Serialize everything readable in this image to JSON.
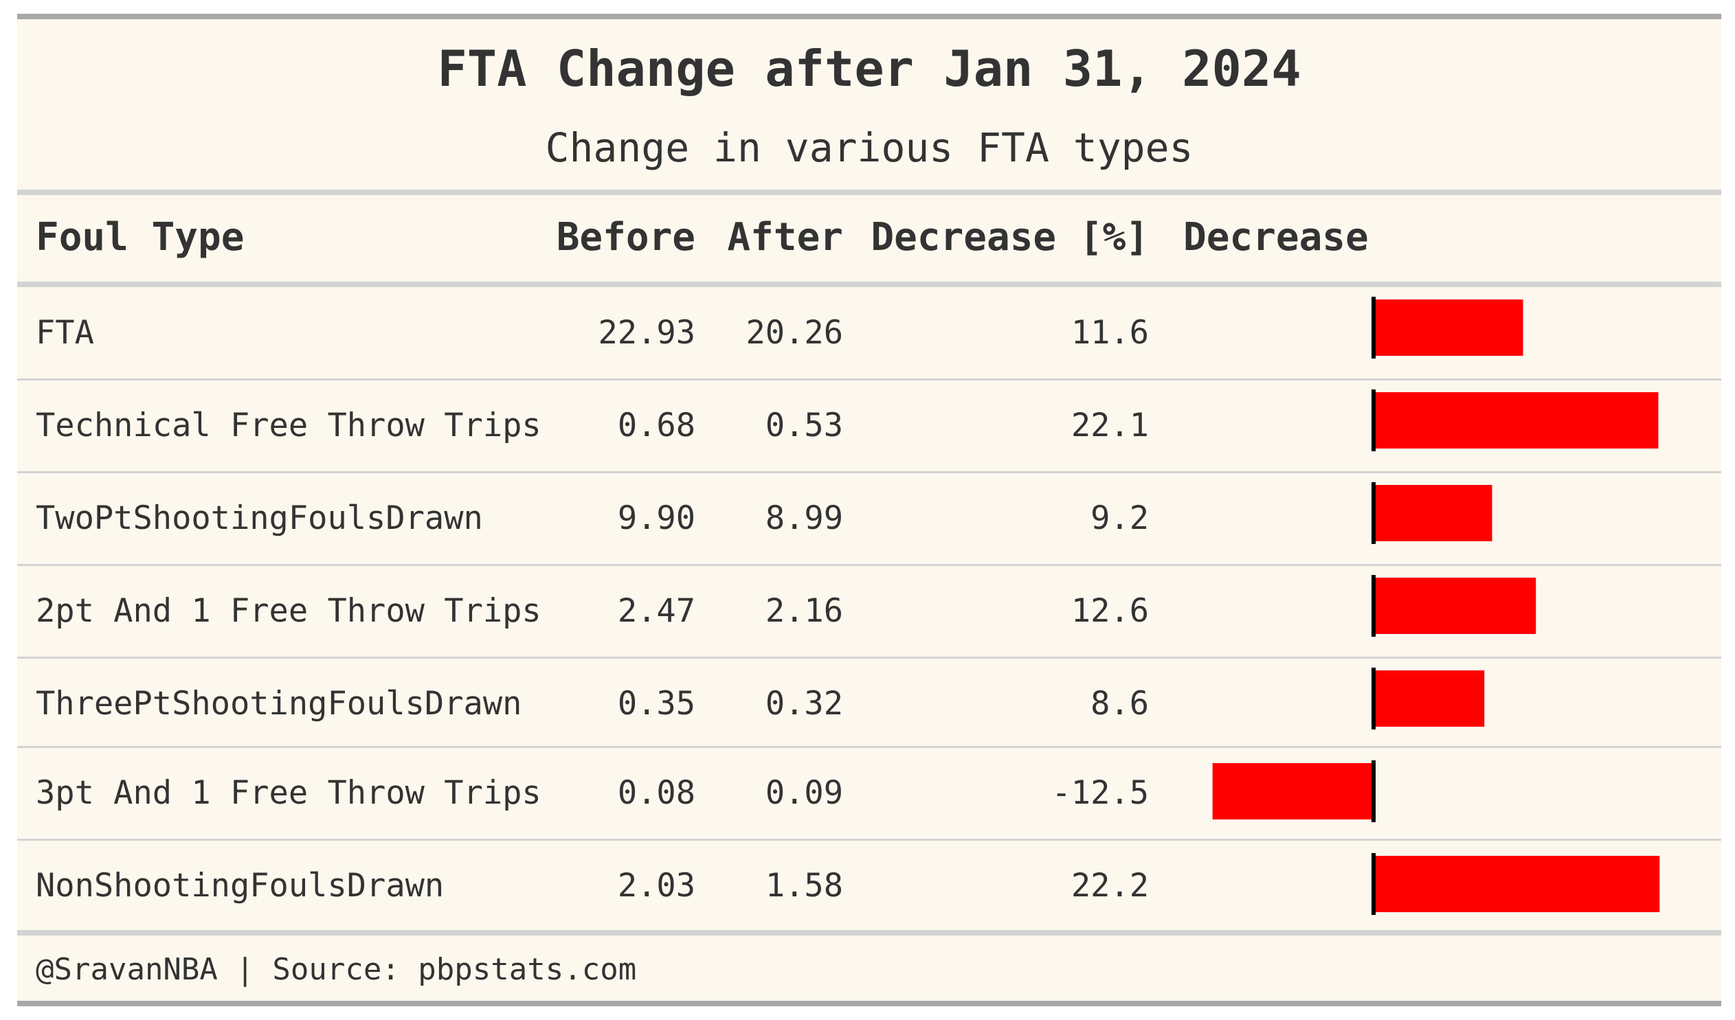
{
  "title": "FTA Change after Jan 31, 2024",
  "subtitle": "Change in various FTA types",
  "columns": {
    "foul_type": "Foul Type",
    "before": "Before",
    "after": "After",
    "decrease_pct": "Decrease [%]",
    "decrease": "Decrease"
  },
  "rows": [
    {
      "foul_type": "FTA",
      "before": "22.93",
      "after": "20.26",
      "decrease_pct": "11.6"
    },
    {
      "foul_type": "Technical Free Throw Trips",
      "before": "0.68",
      "after": "0.53",
      "decrease_pct": "22.1"
    },
    {
      "foul_type": "TwoPtShootingFoulsDrawn",
      "before": "9.90",
      "after": "8.99",
      "decrease_pct": "9.2"
    },
    {
      "foul_type": "2pt And 1 Free Throw Trips",
      "before": "2.47",
      "after": "2.16",
      "decrease_pct": "12.6"
    },
    {
      "foul_type": "ThreePtShootingFoulsDrawn",
      "before": "0.35",
      "after": "0.32",
      "decrease_pct": "8.6"
    },
    {
      "foul_type": "3pt And 1 Free Throw Trips",
      "before": "0.08",
      "after": "0.09",
      "decrease_pct": "-12.5"
    },
    {
      "foul_type": "NonShootingFoulsDrawn",
      "before": "2.03",
      "after": "1.58",
      "decrease_pct": "22.2"
    }
  ],
  "footer": "@SravanNBA | Source: pbpstats.com",
  "colors": {
    "background": "#fcf8ee",
    "bar": "#ff0000",
    "zero_line": "#000000",
    "text": "#333333"
  },
  "chart_data": {
    "type": "bar",
    "orientation": "horizontal",
    "categories": [
      "FTA",
      "Technical Free Throw Trips",
      "TwoPtShootingFoulsDrawn",
      "2pt And 1 Free Throw Trips",
      "ThreePtShootingFoulsDrawn",
      "3pt And 1 Free Throw Trips",
      "NonShootingFoulsDrawn"
    ],
    "values": [
      11.6,
      22.1,
      9.2,
      12.6,
      8.6,
      -12.5,
      22.2
    ],
    "xlim": [
      -12.5,
      22.2
    ],
    "title": "",
    "xlabel": "",
    "ylabel": ""
  }
}
